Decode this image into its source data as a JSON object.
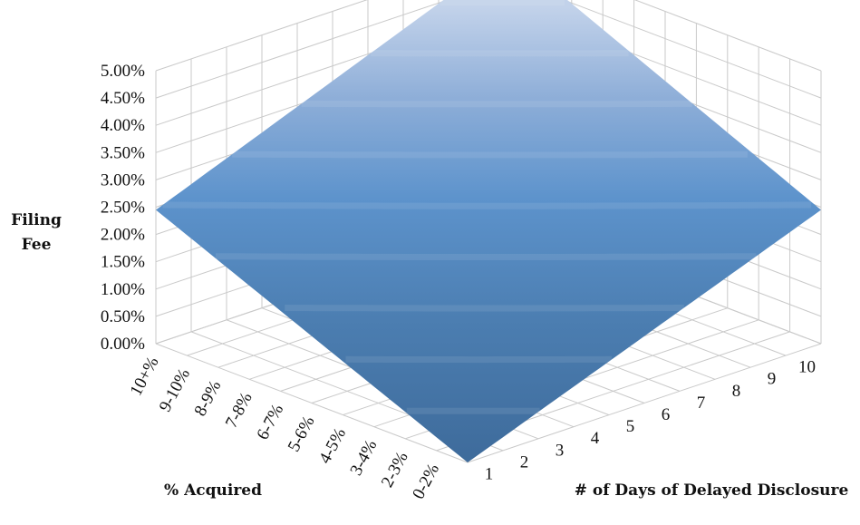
{
  "chart_data": {
    "type": "surface",
    "zlabel_lines": [
      "Filing",
      "Fee"
    ],
    "xlabel": "% Acquired",
    "ylabel": "# of Days of Delayed Disclosure",
    "z_ticks": [
      "0.00%",
      "0.50%",
      "1.00%",
      "1.50%",
      "2.00%",
      "2.50%",
      "3.00%",
      "3.50%",
      "4.00%",
      "4.50%",
      "5.00%"
    ],
    "x_categories": [
      "0-2%",
      "2-3%",
      "3-4%",
      "4-5%",
      "5-6%",
      "6-7%",
      "7-8%",
      "8-9%",
      "9-10%",
      "10+%"
    ],
    "y_categories": [
      "1",
      "2",
      "3",
      "4",
      "5",
      "6",
      "7",
      "8",
      "9",
      "10"
    ],
    "zlim": [
      0,
      5
    ],
    "corner_values": {
      "lowest_pct_lowest_days": 0.0,
      "highest_pct_lowest_days": 2.45,
      "lowest_pct_highest_days": 2.45,
      "highest_pct_highest_days": 5.0
    },
    "grid": true,
    "surface_color_low": "#3d6a9a",
    "surface_color_high": "#b4c8e6"
  }
}
